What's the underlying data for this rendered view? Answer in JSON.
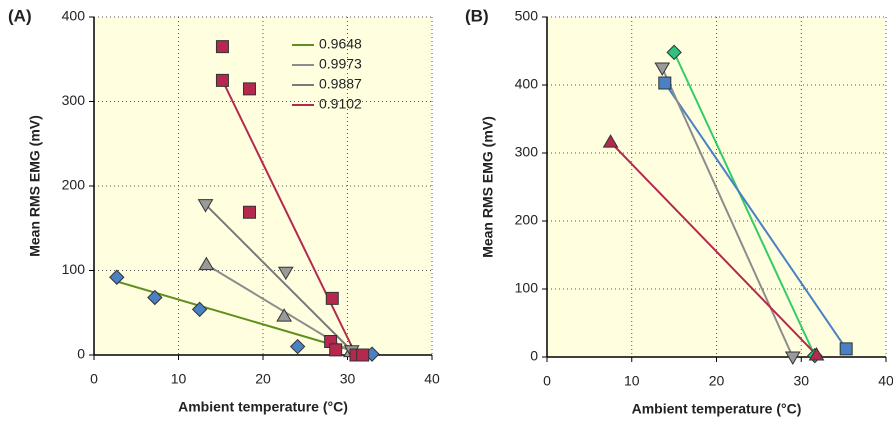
{
  "chart_data": [
    {
      "type": "scatter",
      "label": "(A)",
      "xlabel": "Ambient temperature (°C)",
      "ylabel": "Mean RMS EMG (mV)",
      "xlim": [
        0,
        40
      ],
      "ylim": [
        0,
        400
      ],
      "xticks": [
        0,
        10,
        20,
        30,
        40
      ],
      "yticks": [
        0,
        100,
        200,
        300,
        400
      ],
      "grid": true,
      "background": "#ffffe0",
      "legend": "top-right",
      "series": [
        {
          "name": "0.9648",
          "color": "#5f8f1f",
          "marker": "diamond",
          "marker_color": "#4a80c4",
          "x": [
            2.7,
            7.2,
            12.5,
            24.1,
            32.9
          ],
          "values": [
            92,
            68,
            54,
            10,
            1
          ],
          "fit_x": [
            2.7,
            31
          ],
          "fit_y": [
            87,
            4
          ]
        },
        {
          "name": "0.9973",
          "color": "#8c8c8c",
          "marker": "triangle-up",
          "marker_color": "#9a9a9a",
          "x": [
            13.3,
            22.5,
            30.4
          ],
          "values": [
            107,
            46,
            4
          ],
          "fit_x": [
            13.3,
            31
          ],
          "fit_y": [
            107,
            0
          ]
        },
        {
          "name": "0.9887",
          "color": "#7a7a7a",
          "marker": "triangle-down",
          "marker_color": "#9a9a9a",
          "x": [
            13.2,
            22.7,
            30.5
          ],
          "values": [
            178,
            98,
            5
          ],
          "fit_x": [
            13.2,
            31
          ],
          "fit_y": [
            178,
            0
          ]
        },
        {
          "name": "0.9102",
          "color": "#b5294e",
          "marker": "square",
          "marker_color": "#b5294e",
          "x": [
            15.2,
            15.2,
            18.4,
            18.4,
            28.2,
            28,
            28.6,
            31,
            31.8
          ],
          "values": [
            365,
            325,
            315,
            169,
            67,
            16,
            6,
            0,
            0
          ],
          "fit_x": [
            15.2,
            31
          ],
          "fit_y": [
            325,
            0
          ]
        }
      ]
    },
    {
      "type": "scatter",
      "label": "(B)",
      "xlabel": "Ambient temperature (°C)",
      "ylabel": "Mean RMS EMG (mV)",
      "xlim": [
        0,
        40
      ],
      "ylim": [
        0,
        500
      ],
      "xticks": [
        0,
        10,
        20,
        30,
        40
      ],
      "yticks": [
        0,
        100,
        200,
        300,
        400,
        500
      ],
      "grid": true,
      "background": "#ffffe0",
      "series": [
        {
          "color": "#33cc66",
          "marker": "diamond",
          "marker_color": "#2ec27e",
          "x": [
            15,
            31.6
          ],
          "values": [
            448,
            2
          ]
        },
        {
          "color": "#4a80c4",
          "marker": "square",
          "marker_color": "#4a80c4",
          "x": [
            13.9,
            35.3
          ],
          "values": [
            403,
            12
          ]
        },
        {
          "color": "#8c8c8c",
          "marker": "triangle-down",
          "marker_color": "#9a9a9a",
          "x": [
            13.6,
            29
          ],
          "values": [
            425,
            0
          ]
        },
        {
          "color": "#b5294e",
          "marker": "triangle-up",
          "marker_color": "#b5294e",
          "x": [
            7.5,
            31.8
          ],
          "values": [
            316,
            3
          ]
        }
      ]
    }
  ]
}
